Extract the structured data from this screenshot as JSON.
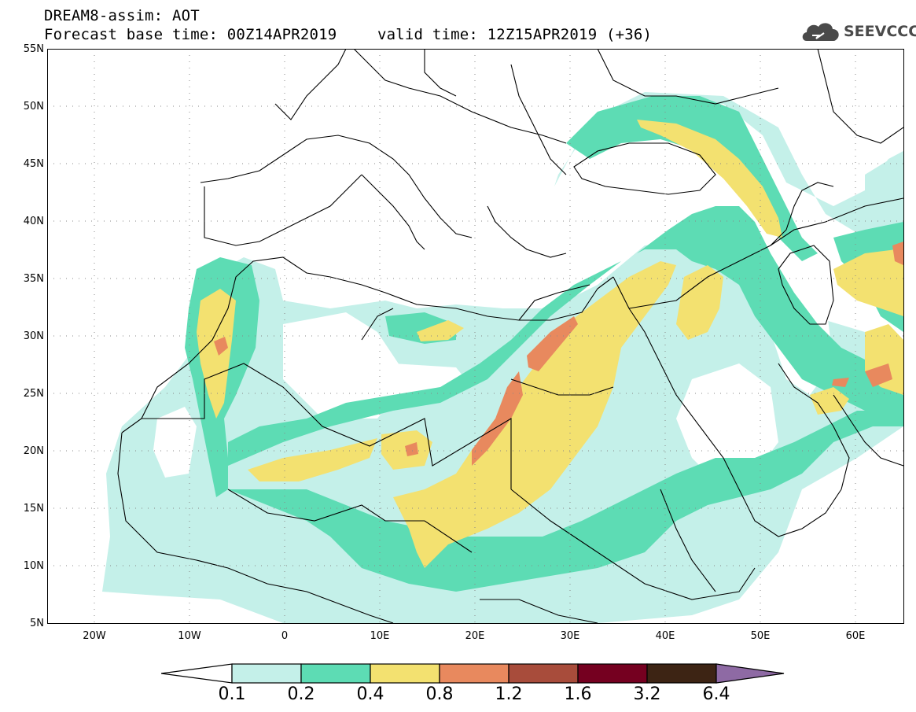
{
  "title": {
    "line1": "DREAM8-assim: AOT",
    "line2": "Forecast base time: 00Z14APR2019",
    "valid": "valid time: 12Z15APR2019 (+36)"
  },
  "logo": {
    "text": "SEEVCCC"
  },
  "axes": {
    "lat_labels": [
      "55N",
      "50N",
      "45N",
      "40N",
      "35N",
      "30N",
      "25N",
      "20N",
      "15N",
      "10N",
      "5N"
    ],
    "lon_labels": [
      "20W",
      "10W",
      "0",
      "10E",
      "20E",
      "30E",
      "40E",
      "50E",
      "60E"
    ],
    "lat_range": [
      5,
      55
    ],
    "lon_range": [
      -25,
      65
    ],
    "grid": "dotted"
  },
  "colorbar": {
    "labels": [
      "0.1",
      "0.2",
      "0.4",
      "0.8",
      "1.2",
      "1.6",
      "3.2",
      "6.4"
    ],
    "colors": [
      "#ffffff",
      "#c4f0e9",
      "#5ddcb4",
      "#f3e170",
      "#e8895e",
      "#a84c3b",
      "#750020",
      "#3d2414",
      "#8e6aa4"
    ]
  }
}
